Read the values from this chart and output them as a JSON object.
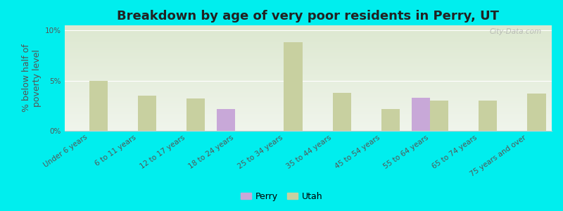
{
  "title": "Breakdown by age of very poor residents in Perry, UT",
  "ylabel": "% below half of\npoverty level",
  "categories": [
    "Under 6 years",
    "6 to 11 years",
    "12 to 17 years",
    "18 to 24 years",
    "25 to 34 years",
    "35 to 44 years",
    "45 to 54 years",
    "55 to 64 years",
    "65 to 74 years",
    "75 years and over"
  ],
  "perry_values": [
    0,
    0,
    0,
    2.2,
    0,
    0,
    0,
    3.3,
    0,
    0
  ],
  "utah_values": [
    5.0,
    3.5,
    3.2,
    0,
    8.8,
    3.8,
    2.2,
    3.0,
    3.0,
    3.7
  ],
  "perry_color": "#c8a8d8",
  "utah_color": "#c8d0a0",
  "background_color": "#00eeee",
  "plot_bg_top": "#dde8d0",
  "plot_bg_bottom": "#f0f5ec",
  "title_fontsize": 13,
  "ylabel_fontsize": 9,
  "tick_fontsize": 7.5,
  "ylim": [
    0,
    10.5
  ],
  "yticks": [
    0,
    5,
    10
  ],
  "ytick_labels": [
    "0%",
    "5%",
    "10%"
  ],
  "bar_width": 0.38,
  "legend_perry": "Perry",
  "legend_utah": "Utah",
  "watermark": "City-Data.com"
}
